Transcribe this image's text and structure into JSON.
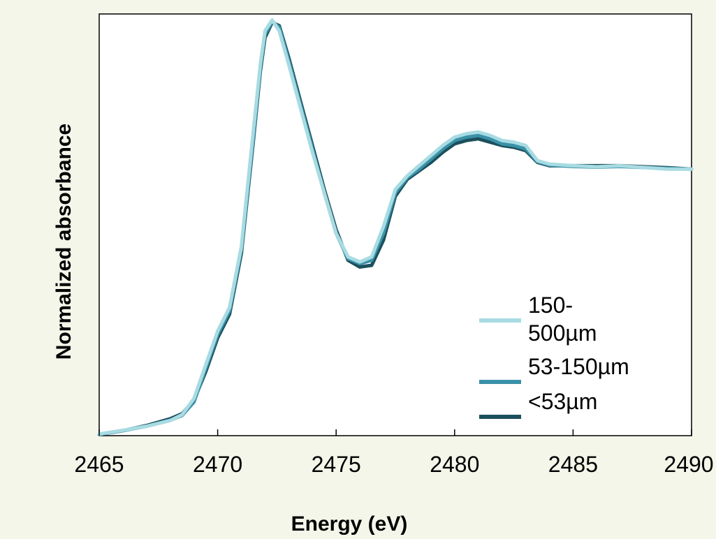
{
  "chart_data": {
    "type": "line",
    "title": "",
    "xlabel": "Energy (eV)",
    "ylabel": "Normalized absorbance",
    "xlim": [
      2465,
      2490
    ],
    "ylim": [
      0,
      1.25
    ],
    "xticks": [
      2465,
      2470,
      2475,
      2480,
      2485,
      2490
    ],
    "xtick_labels": [
      "2465",
      "2470",
      "2475",
      "2480",
      "2485",
      "2490"
    ],
    "yticks_shown": false,
    "grid": false,
    "legend_position": "lower-right",
    "series": [
      {
        "name": "150-500µm",
        "color": "#a8dbe2",
        "x": [
          2465,
          2466,
          2467,
          2468,
          2468.5,
          2469,
          2469.5,
          2470,
          2470.5,
          2471,
          2471.5,
          2471.8,
          2472,
          2472.3,
          2472.6,
          2473,
          2473.5,
          2474,
          2474.5,
          2475,
          2475.5,
          2476,
          2476.5,
          2477,
          2477.5,
          2478,
          2478.5,
          2479,
          2479.5,
          2480,
          2480.5,
          2481,
          2481.5,
          2482,
          2482.5,
          2483,
          2483.5,
          2484,
          2485,
          2486,
          2487,
          2488,
          2489,
          2490
        ],
        "y": [
          0.005,
          0.016,
          0.028,
          0.045,
          0.062,
          0.11,
          0.21,
          0.31,
          0.38,
          0.56,
          0.9,
          1.1,
          1.2,
          1.232,
          1.2,
          1.1,
          0.97,
          0.84,
          0.72,
          0.6,
          0.53,
          0.515,
          0.53,
          0.62,
          0.73,
          0.77,
          0.8,
          0.83,
          0.86,
          0.885,
          0.895,
          0.9,
          0.89,
          0.875,
          0.87,
          0.86,
          0.815,
          0.805,
          0.8,
          0.797,
          0.8,
          0.795,
          0.79,
          0.79
        ]
      },
      {
        "name": "53-150µm",
        "color": "#3a91a8",
        "x": [
          2465,
          2466,
          2467,
          2468,
          2468.5,
          2469,
          2469.5,
          2470,
          2470.5,
          2471,
          2471.5,
          2471.8,
          2472,
          2472.3,
          2472.6,
          2473,
          2473.5,
          2474,
          2474.5,
          2475,
          2475.5,
          2476,
          2476.5,
          2477,
          2477.5,
          2478,
          2478.5,
          2479,
          2479.5,
          2480,
          2480.5,
          2481,
          2481.5,
          2482,
          2482.5,
          2483,
          2483.5,
          2484,
          2485,
          2486,
          2487,
          2488,
          2489,
          2490
        ],
        "y": [
          0.004,
          0.015,
          0.028,
          0.046,
          0.06,
          0.1,
          0.2,
          0.3,
          0.37,
          0.55,
          0.88,
          1.09,
          1.19,
          1.228,
          1.21,
          1.11,
          0.98,
          0.85,
          0.72,
          0.6,
          0.525,
          0.51,
          0.52,
          0.6,
          0.72,
          0.765,
          0.79,
          0.82,
          0.85,
          0.875,
          0.885,
          0.89,
          0.88,
          0.865,
          0.86,
          0.85,
          0.812,
          0.802,
          0.798,
          0.796,
          0.798,
          0.795,
          0.792,
          0.79
        ]
      },
      {
        "name": "<53µm",
        "color": "#1c4f5c",
        "x": [
          2465,
          2466,
          2467,
          2468,
          2468.5,
          2469,
          2469.5,
          2470,
          2470.5,
          2471,
          2471.5,
          2471.8,
          2472,
          2472.3,
          2472.6,
          2473,
          2473.5,
          2474,
          2474.5,
          2475,
          2475.5,
          2476,
          2476.5,
          2477,
          2477.5,
          2478,
          2478.5,
          2479,
          2479.5,
          2480,
          2480.5,
          2481,
          2481.5,
          2482,
          2482.5,
          2483,
          2483.5,
          2484,
          2485,
          2486,
          2487,
          2488,
          2489,
          2490
        ],
        "y": [
          0.004,
          0.015,
          0.03,
          0.05,
          0.065,
          0.105,
          0.19,
          0.29,
          0.36,
          0.54,
          0.87,
          1.08,
          1.18,
          1.225,
          1.215,
          1.12,
          0.99,
          0.86,
          0.73,
          0.61,
          0.52,
          0.5,
          0.505,
          0.58,
          0.71,
          0.76,
          0.785,
          0.81,
          0.84,
          0.865,
          0.875,
          0.88,
          0.87,
          0.86,
          0.855,
          0.845,
          0.81,
          0.8,
          0.8,
          0.8,
          0.8,
          0.797,
          0.794,
          0.79
        ]
      }
    ]
  }
}
